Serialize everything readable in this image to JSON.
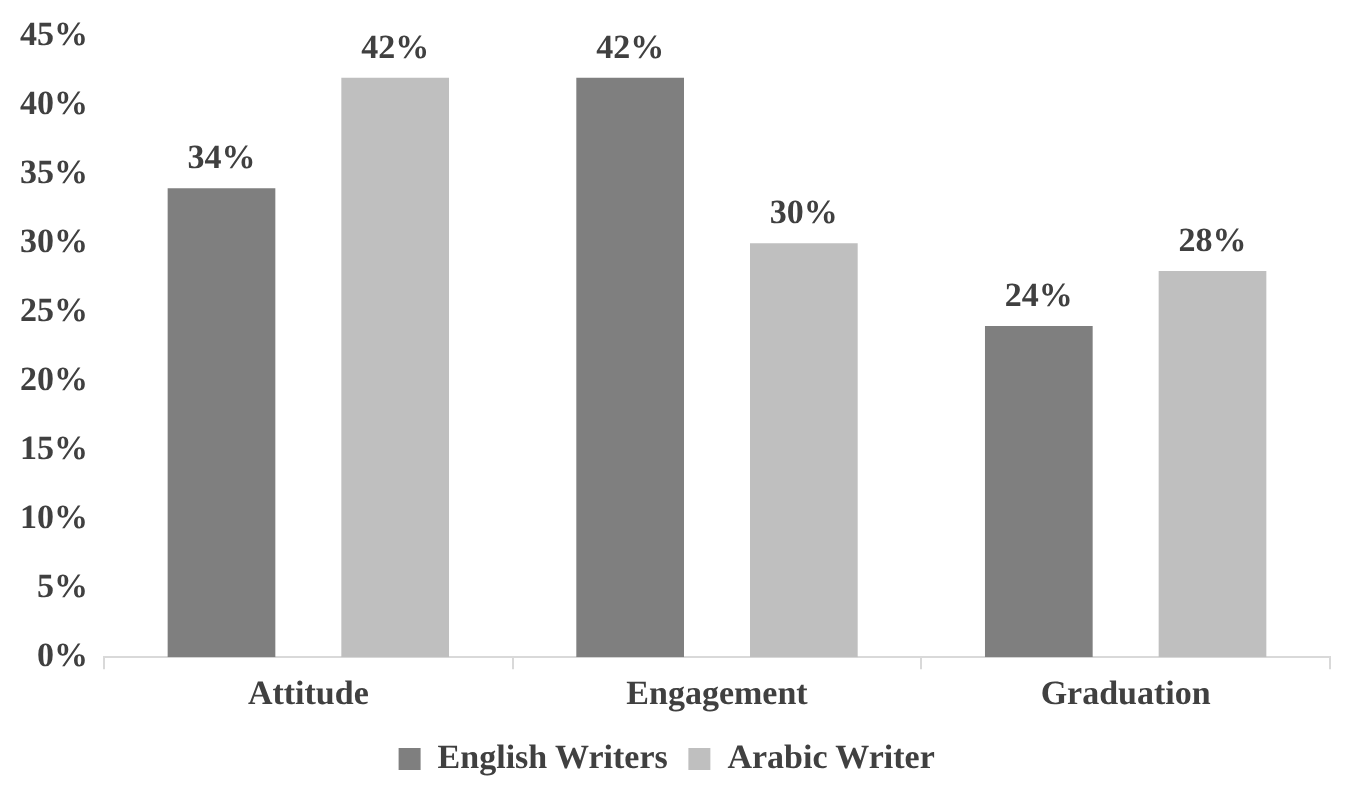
{
  "chart_data": {
    "type": "bar",
    "categories": [
      "Attitude",
      "Engagement",
      "Graduation"
    ],
    "series": [
      {
        "name": "English Writers",
        "color": "#7f7f7f",
        "values": [
          34,
          42,
          24
        ],
        "value_labels": [
          "34%",
          "42%",
          "24%"
        ]
      },
      {
        "name": "Arabic Writer",
        "color": "#bfbfbf",
        "values": [
          42,
          30,
          28
        ],
        "value_labels": [
          "42%",
          "30%",
          "28%"
        ]
      }
    ],
    "ylim": [
      0,
      45
    ],
    "yticks": [
      {
        "value": 0,
        "label": "0%"
      },
      {
        "value": 5,
        "label": "5%"
      },
      {
        "value": 10,
        "label": "10%"
      },
      {
        "value": 15,
        "label": "15%"
      },
      {
        "value": 20,
        "label": "20%"
      },
      {
        "value": 25,
        "label": "25%"
      },
      {
        "value": 30,
        "label": "30%"
      },
      {
        "value": 35,
        "label": "35%"
      },
      {
        "value": 40,
        "label": "40%"
      },
      {
        "value": 45,
        "label": "45%"
      }
    ],
    "grid": false,
    "legend": "bottom"
  }
}
